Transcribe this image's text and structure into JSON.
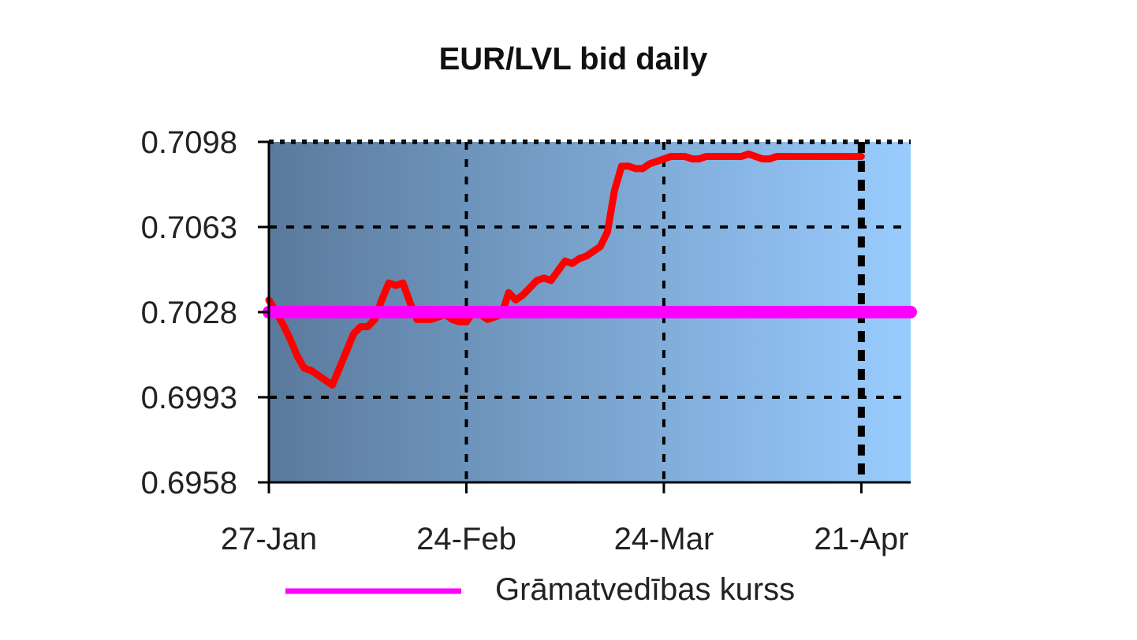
{
  "chart_data": {
    "type": "line",
    "title": "EUR/LVL bid daily",
    "xlabel": "",
    "ylabel": "",
    "x_ticks": [
      "27-Jan",
      "24-Feb",
      "24-Mar",
      "21-Apr"
    ],
    "x_range": [
      "27-Jan",
      "28-Apr"
    ],
    "y_ticks": [
      "0.7098",
      "0.7063",
      "0.7028",
      "0.6993",
      "0.6958"
    ],
    "ylim": [
      0.6958,
      0.7098
    ],
    "grid": true,
    "legend_position": "bottom",
    "series": [
      {
        "name": "",
        "color": "#ff0000",
        "x": [
          "27-Jan",
          "28-Jan",
          "29-Jan",
          "30-Jan",
          "31-Jan",
          "1-Feb",
          "2-Feb",
          "3-Feb",
          "4-Feb",
          "5-Feb",
          "6-Feb",
          "7-Feb",
          "8-Feb",
          "9-Feb",
          "10-Feb",
          "11-Feb",
          "12-Feb",
          "13-Feb",
          "14-Feb",
          "15-Feb",
          "16-Feb",
          "17-Feb",
          "18-Feb",
          "19-Feb",
          "20-Feb",
          "21-Feb",
          "22-Feb",
          "23-Feb",
          "24-Feb",
          "25-Feb",
          "26-Feb",
          "27-Feb",
          "28-Feb",
          "1-Mar",
          "2-Mar",
          "3-Mar",
          "4-Mar",
          "5-Mar",
          "6-Mar",
          "7-Mar",
          "8-Mar",
          "9-Mar",
          "10-Mar",
          "11-Mar",
          "12-Mar",
          "13-Mar",
          "14-Mar",
          "15-Mar",
          "16-Mar",
          "17-Mar",
          "18-Mar",
          "19-Mar",
          "20-Mar",
          "21-Mar",
          "22-Mar",
          "23-Mar",
          "24-Mar",
          "25-Mar",
          "26-Mar",
          "27-Mar",
          "28-Mar",
          "29-Mar",
          "30-Mar",
          "31-Mar",
          "1-Apr",
          "2-Apr",
          "3-Apr",
          "4-Apr",
          "5-Apr",
          "6-Apr",
          "7-Apr",
          "8-Apr",
          "9-Apr",
          "10-Apr",
          "11-Apr",
          "12-Apr",
          "13-Apr",
          "14-Apr",
          "15-Apr",
          "16-Apr",
          "17-Apr",
          "18-Apr",
          "19-Apr",
          "20-Apr",
          "21-Apr"
        ],
        "y": [
          0.7033,
          0.7028,
          0.7023,
          0.7017,
          0.701,
          0.7005,
          0.7004,
          0.7002,
          0.7,
          0.6998,
          0.7005,
          0.7012,
          0.7019,
          0.7022,
          0.7022,
          0.7025,
          0.7033,
          0.704,
          0.7039,
          0.704,
          0.7032,
          0.7025,
          0.7025,
          0.7025,
          0.7026,
          0.7027,
          0.7025,
          0.7024,
          0.7024,
          0.7028,
          0.7027,
          0.7025,
          0.7026,
          0.7027,
          0.7036,
          0.7033,
          0.7035,
          0.7038,
          0.7041,
          0.7042,
          0.7041,
          0.7045,
          0.7049,
          0.7048,
          0.705,
          0.7051,
          0.7053,
          0.7055,
          0.7061,
          0.7078,
          0.7088,
          0.7088,
          0.7087,
          0.7087,
          0.7089,
          0.709,
          0.7091,
          0.7092,
          0.7092,
          0.7092,
          0.7091,
          0.7091,
          0.7092,
          0.7092,
          0.7092,
          0.7092,
          0.7092,
          0.7092,
          0.7093,
          0.7092,
          0.7091,
          0.7091,
          0.7092,
          0.7092,
          0.7092,
          0.7092,
          0.7092,
          0.7092,
          0.7092,
          0.7092,
          0.7092,
          0.7092,
          0.7092,
          0.7092,
          0.7092
        ]
      },
      {
        "name": "Grāmatvedības kurss",
        "color": "#ff00ff",
        "x": [
          "27-Jan",
          "28-Apr"
        ],
        "y": [
          0.7028,
          0.7028
        ]
      }
    ],
    "plot_background": [
      "#5a7a9c",
      "#99ccff"
    ]
  }
}
